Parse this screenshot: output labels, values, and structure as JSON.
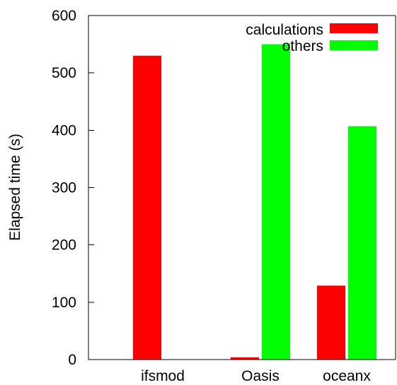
{
  "chart_data": {
    "type": "bar",
    "title": "",
    "xlabel": "",
    "ylabel": "Elapsed time (s)",
    "categories": [
      "ifsmod",
      "Oasis",
      "oceanx"
    ],
    "series": [
      {
        "name": "calculations",
        "color": "#ff0000",
        "values": [
          530,
          4,
          129
        ]
      },
      {
        "name": "others",
        "color": "#00ff00",
        "values": [
          0,
          550,
          407
        ]
      }
    ],
    "ylim": [
      0,
      600
    ],
    "yticks": [
      0,
      100,
      200,
      300,
      400,
      500,
      600
    ],
    "grid": false,
    "legend_position": "top-right"
  }
}
